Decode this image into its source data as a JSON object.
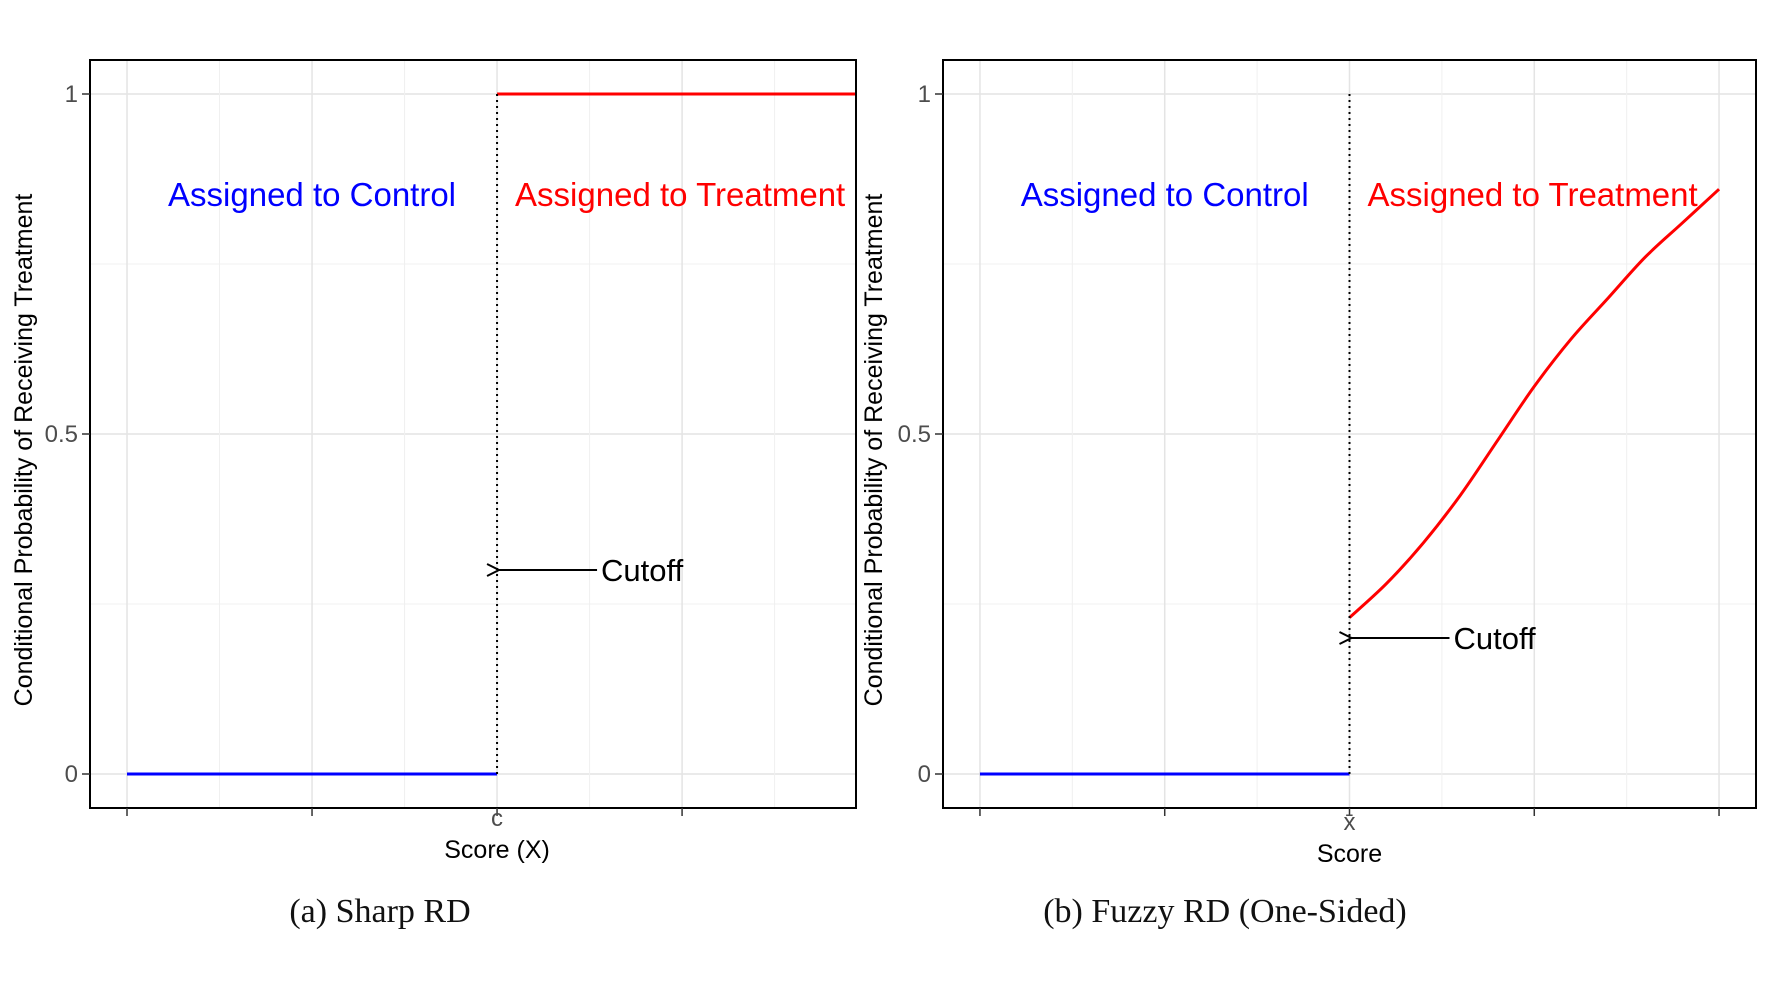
{
  "chart_data": [
    {
      "type": "line",
      "caption": "(a) Sharp RD",
      "xlabel": "Score (X)",
      "ylabel": "Conditional Probability of Receiving Treatment",
      "x_tick_label": "c",
      "y_ticks": [
        0,
        0.5,
        1
      ],
      "y_tick_labels": [
        "0",
        "0.5",
        "1"
      ],
      "ylim": [
        -0.05,
        1.05
      ],
      "xlim": [
        -0.1,
        1.97
      ],
      "cutoff_x": 1,
      "grid": true,
      "colors": {
        "control": "#0000ff",
        "treatment": "#ff0000"
      },
      "regions": {
        "control_label": "Assigned to Control",
        "treatment_label": "Assigned to Treatment"
      },
      "annotation": {
        "text": "Cutoff",
        "y": 0.3
      },
      "series": [
        {
          "role": "control",
          "x": [
            0,
            1
          ],
          "y": [
            0,
            0
          ]
        },
        {
          "role": "treatment",
          "x": [
            1,
            1.97
          ],
          "y": [
            1,
            1
          ]
        }
      ]
    },
    {
      "type": "line",
      "caption": "(b) Fuzzy RD (One-Sided)",
      "xlabel": "Score",
      "ylabel": "Conditional Probability of Receiving Treatment",
      "x_tick_label": "x̄",
      "y_ticks": [
        0,
        0.5,
        1
      ],
      "y_tick_labels": [
        "0",
        "0.5",
        "1"
      ],
      "ylim": [
        -0.05,
        1.05
      ],
      "xlim": [
        -0.1,
        2.1
      ],
      "cutoff_x": 1,
      "grid": true,
      "colors": {
        "control": "#0000ff",
        "treatment": "#ff0000"
      },
      "regions": {
        "control_label": "Assigned to Control",
        "treatment_label": "Assigned to Treatment"
      },
      "annotation": {
        "text": "Cutoff",
        "y": 0.2
      },
      "series": [
        {
          "role": "control",
          "x": [
            0,
            1
          ],
          "y": [
            0,
            0
          ]
        },
        {
          "role": "treatment",
          "x": [
            1.0,
            1.1,
            1.2,
            1.3,
            1.4,
            1.5,
            1.6,
            1.7,
            1.8,
            1.9,
            2.0
          ],
          "y": [
            0.23,
            0.28,
            0.34,
            0.41,
            0.49,
            0.57,
            0.64,
            0.7,
            0.76,
            0.81,
            0.86
          ]
        }
      ]
    }
  ]
}
